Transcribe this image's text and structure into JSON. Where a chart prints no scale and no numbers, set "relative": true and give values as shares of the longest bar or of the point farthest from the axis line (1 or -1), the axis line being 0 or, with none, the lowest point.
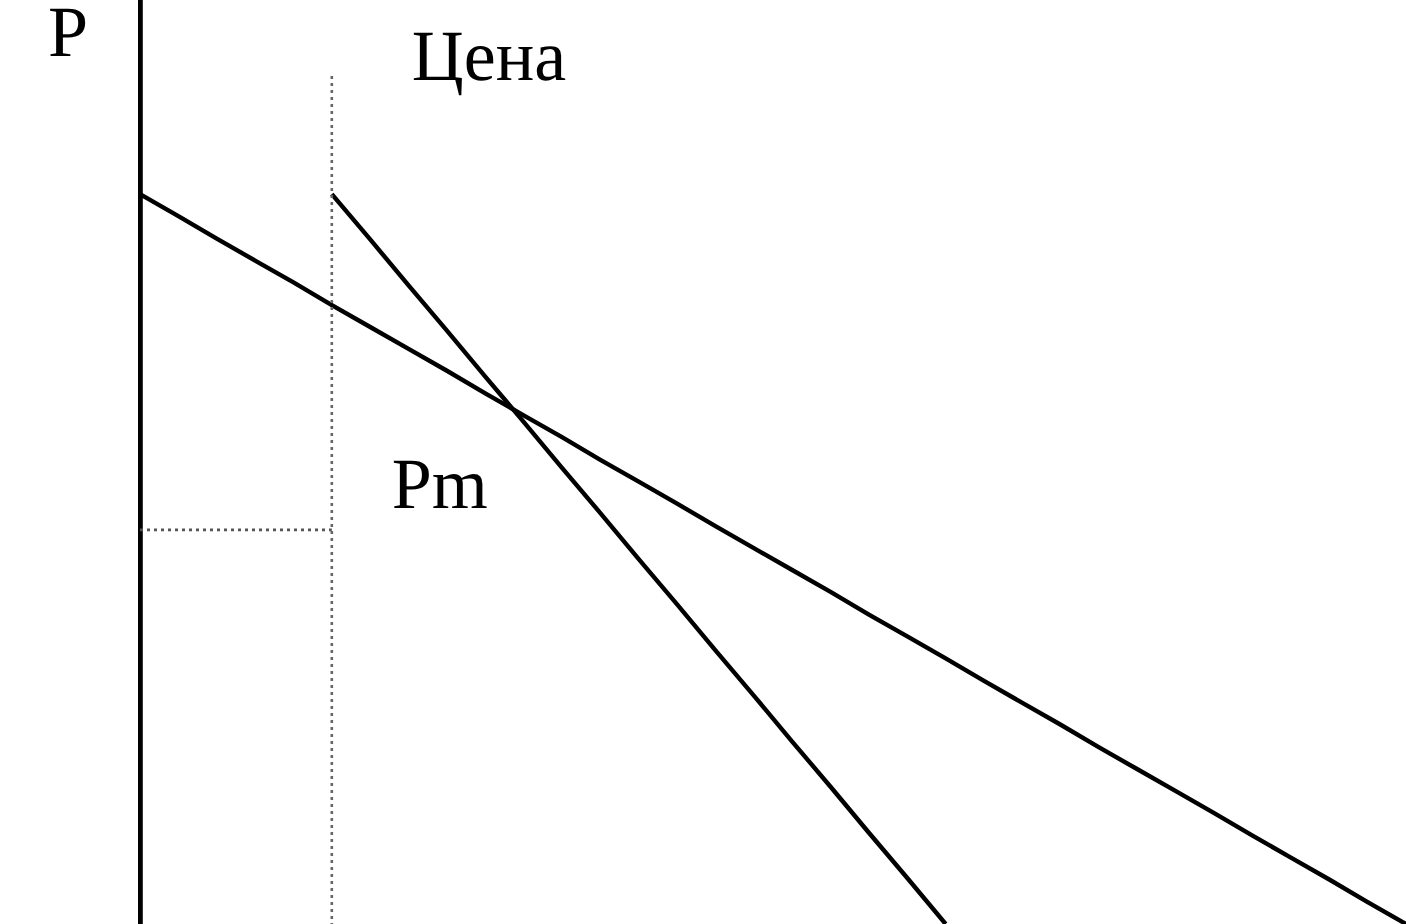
{
  "chart_data": {
    "type": "line",
    "relative": true,
    "ylabel": "P",
    "annotations": [
      "Цена"
    ],
    "categories": [
      null,
      null,
      null,
      null,
      null,
      null,
      null,
      null,
      null,
      null,
      null,
      null,
      null,
      null,
      null,
      null,
      null,
      null,
      null,
      null,
      null,
      null,
      null,
      null,
      null,
      null,
      null,
      null,
      null,
      null,
      null,
      null,
      null,
      null
    ],
    "series": [
      {
        "color": "#000000",
        "values": [
          1,
          0.97,
          0.939,
          0.909,
          0.879,
          0.848,
          0.818,
          0.788,
          0.758,
          0.727,
          0.697,
          0.667,
          0.636,
          0.606,
          0.576,
          0.545,
          0.515,
          0.485,
          0.455,
          0.424,
          0.394,
          0.364,
          0.333,
          0.303,
          0.273,
          0.242,
          0.212,
          0.182,
          0.152,
          0.121,
          0.091,
          0.061,
          0.03,
          0
        ]
      },
      {
        "color": "#000000",
        "values": [
          null,
          null,
          null,
          null,
          null,
          1,
          0.938,
          0.875,
          0.813,
          0.75,
          0.688,
          0.625,
          0.563,
          0.5,
          0.438,
          0.375,
          0.313,
          0.25,
          0.188,
          0.125,
          0.063,
          0,
          null,
          null,
          null,
          null,
          null,
          null,
          null,
          null,
          null,
          null,
          null,
          null
        ]
      },
      {
        "name": "Pm",
        "color": "#555555",
        "line_style": "dotted",
        "values": [
          0.54,
          0.54,
          0.54,
          0.54,
          0.54,
          0.54,
          null,
          null,
          null,
          null,
          null,
          null,
          null,
          null,
          null,
          null,
          null,
          null,
          null,
          null,
          null,
          null,
          null,
          null,
          null,
          null,
          null,
          null,
          null,
          null,
          null,
          null,
          null,
          null
        ]
      }
    ],
    "grid": false,
    "legend": false,
    "tick_labels": false
  }
}
